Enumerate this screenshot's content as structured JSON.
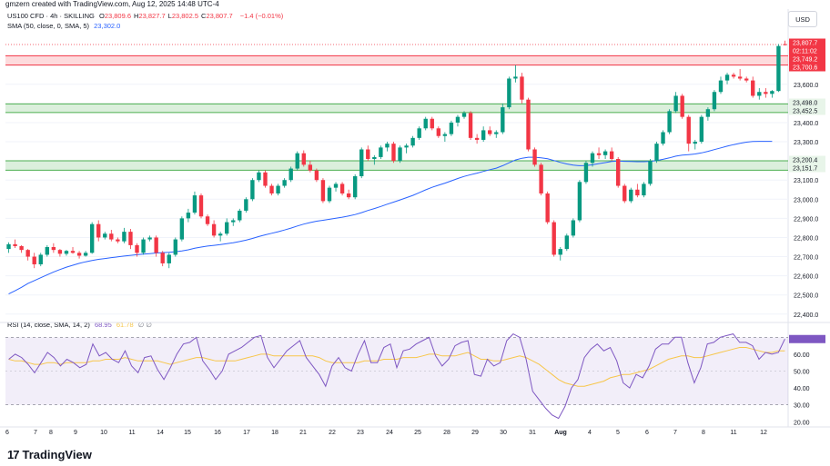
{
  "caption": "gmzern created with TradingView.com, Aug 12, 2025 14:48 UTC-4",
  "legend": {
    "symbol": "US100 CFD · 4h · SKILLING",
    "ohlc": [
      {
        "label": "O",
        "value": "23,809.6"
      },
      {
        "label": "H",
        "value": "23,827.7"
      },
      {
        "label": "L",
        "value": "23,802.5"
      },
      {
        "label": "C",
        "value": "23,807.7"
      }
    ],
    "change": "−1.4 (−0.01%)",
    "sma_label": "SMA (50, close, 0, SMA, 5)",
    "sma_value": "23,302.0",
    "rsi_label": "RSI (14, close, SMA, 14, 2)",
    "rsi_value": "68.95",
    "rsi_ma_value": "61.78",
    "rsi_extra": "∅ ∅"
  },
  "currency": "USD",
  "brand": "TradingView",
  "colors": {
    "up": "#089981",
    "down": "#f23645",
    "sma": "#2962ff",
    "rsi": "#7e57c2",
    "rsi_ma": "#f7c64a",
    "resistance_zone": "#f23645",
    "support_zone": "#4caf50"
  },
  "chart_data": [
    {
      "type": "candlestick",
      "interval": "4h",
      "y_axis_labels": [
        "23,700.0",
        "23,600.0",
        "23,500.0",
        "23,400.0",
        "23,300.0",
        "23,200.0",
        "23,100.0",
        "23,000.0",
        "22,900.0",
        "22,800.0",
        "22,700.0",
        "22,600.0",
        "22,500.0",
        "22,400.0"
      ],
      "ylim": [
        22380,
        23860
      ],
      "x_labels": [
        "6",
        "7",
        "8",
        "9",
        "10",
        "11",
        "14",
        "15",
        "16",
        "17",
        "18",
        "21",
        "22",
        "23",
        "24",
        "25",
        "28",
        "29",
        "30",
        "31",
        "Aug",
        "4",
        "5",
        "6",
        "7",
        "8",
        "11",
        "12"
      ],
      "price_labels": [
        {
          "text": "23,807.7",
          "value": 23807.7,
          "kind": "last"
        },
        {
          "text": "02:11:02",
          "value": 23785,
          "kind": "countdown"
        },
        {
          "text": "23,749.2",
          "value": 23749.2,
          "kind": "zone"
        },
        {
          "text": "23,700.6",
          "value": 23700.6,
          "kind": "zone"
        },
        {
          "text": "23,498.0",
          "value": 23498.0,
          "kind": "support"
        },
        {
          "text": "23,452.5",
          "value": 23452.5,
          "kind": "support"
        },
        {
          "text": "23,200.4",
          "value": 23200.4,
          "kind": "support"
        },
        {
          "text": "23,151.7",
          "value": 23151.7,
          "kind": "support"
        }
      ],
      "zones": [
        {
          "kind": "resistance",
          "from": 23700.6,
          "to": 23749.2
        },
        {
          "kind": "support",
          "from": 23452.5,
          "to": 23498.0
        },
        {
          "kind": "support",
          "from": 23151.7,
          "to": 23200.4
        }
      ],
      "candles": [
        [
          22740,
          22775,
          22720,
          22765
        ],
        [
          22765,
          22790,
          22745,
          22755
        ],
        [
          22755,
          22760,
          22720,
          22735
        ],
        [
          22735,
          22740,
          22680,
          22700
        ],
        [
          22700,
          22720,
          22640,
          22660
        ],
        [
          22660,
          22720,
          22650,
          22710
        ],
        [
          22710,
          22760,
          22700,
          22750
        ],
        [
          22750,
          22770,
          22720,
          22735
        ],
        [
          22735,
          22740,
          22700,
          22715
        ],
        [
          22715,
          22735,
          22705,
          22730
        ],
        [
          22730,
          22750,
          22715,
          22720
        ],
        [
          22720,
          22730,
          22690,
          22705
        ],
        [
          22705,
          22730,
          22700,
          22720
        ],
        [
          22720,
          22880,
          22715,
          22870
        ],
        [
          22870,
          22890,
          22780,
          22800
        ],
        [
          22800,
          22830,
          22790,
          22820
        ],
        [
          22820,
          22840,
          22780,
          22790
        ],
        [
          22790,
          22800,
          22770,
          22780
        ],
        [
          22780,
          22850,
          22770,
          22830
        ],
        [
          22830,
          22845,
          22740,
          22760
        ],
        [
          22760,
          22770,
          22700,
          22720
        ],
        [
          22720,
          22800,
          22710,
          22790
        ],
        [
          22790,
          22810,
          22780,
          22800
        ],
        [
          22800,
          22810,
          22700,
          22720
        ],
        [
          22720,
          22730,
          22650,
          22665
        ],
        [
          22665,
          22720,
          22640,
          22710
        ],
        [
          22710,
          22800,
          22700,
          22790
        ],
        [
          22790,
          22910,
          22780,
          22900
        ],
        [
          22900,
          22950,
          22880,
          22930
        ],
        [
          22930,
          23040,
          22920,
          23020
        ],
        [
          23020,
          23030,
          22900,
          22910
        ],
        [
          22910,
          22920,
          22860,
          22870
        ],
        [
          22870,
          22890,
          22800,
          22810
        ],
        [
          22810,
          22830,
          22780,
          22820
        ],
        [
          22820,
          22900,
          22810,
          22880
        ],
        [
          22880,
          22900,
          22860,
          22890
        ],
        [
          22890,
          22950,
          22880,
          22940
        ],
        [
          22940,
          23010,
          22930,
          23000
        ],
        [
          23000,
          23110,
          22990,
          23100
        ],
        [
          23100,
          23150,
          23090,
          23140
        ],
        [
          23140,
          23150,
          23060,
          23070
        ],
        [
          23070,
          23080,
          23020,
          23030
        ],
        [
          23030,
          23080,
          23020,
          23070
        ],
        [
          23070,
          23110,
          23060,
          23100
        ],
        [
          23100,
          23170,
          23090,
          23160
        ],
        [
          23160,
          23250,
          23150,
          23240
        ],
        [
          23240,
          23255,
          23170,
          23180
        ],
        [
          23180,
          23200,
          23140,
          23150
        ],
        [
          23150,
          23160,
          23090,
          23100
        ],
        [
          23100,
          23110,
          22980,
          22990
        ],
        [
          22990,
          23070,
          22980,
          23060
        ],
        [
          23060,
          23090,
          23040,
          23080
        ],
        [
          23080,
          23090,
          23020,
          23030
        ],
        [
          23030,
          23050,
          23000,
          23010
        ],
        [
          23010,
          23130,
          23000,
          23120
        ],
        [
          23120,
          23270,
          23110,
          23260
        ],
        [
          23260,
          23280,
          23200,
          23210
        ],
        [
          23210,
          23230,
          23180,
          23220
        ],
        [
          23220,
          23280,
          23210,
          23270
        ],
        [
          23270,
          23300,
          23250,
          23290
        ],
        [
          23290,
          23300,
          23190,
          23200
        ],
        [
          23200,
          23280,
          23190,
          23270
        ],
        [
          23270,
          23290,
          23240,
          23280
        ],
        [
          23280,
          23330,
          23270,
          23320
        ],
        [
          23320,
          23380,
          23310,
          23370
        ],
        [
          23370,
          23430,
          23360,
          23420
        ],
        [
          23420,
          23430,
          23360,
          23370
        ],
        [
          23370,
          23380,
          23320,
          23330
        ],
        [
          23330,
          23350,
          23300,
          23340
        ],
        [
          23340,
          23410,
          23330,
          23400
        ],
        [
          23400,
          23440,
          23380,
          23430
        ],
        [
          23430,
          23460,
          23420,
          23450
        ],
        [
          23450,
          23460,
          23310,
          23320
        ],
        [
          23320,
          23340,
          23290,
          23310
        ],
        [
          23310,
          23380,
          23300,
          23360
        ],
        [
          23360,
          23380,
          23330,
          23340
        ],
        [
          23340,
          23360,
          23320,
          23350
        ],
        [
          23350,
          23500,
          23340,
          23480
        ],
        [
          23480,
          23640,
          23470,
          23630
        ],
        [
          23630,
          23700,
          23610,
          23640
        ],
        [
          23640,
          23660,
          23500,
          23520
        ],
        [
          23520,
          23530,
          23250,
          23260
        ],
        [
          23260,
          23270,
          23170,
          23180
        ],
        [
          23180,
          23190,
          23020,
          23030
        ],
        [
          23030,
          23040,
          22870,
          22880
        ],
        [
          22880,
          22890,
          22700,
          22710
        ],
        [
          22710,
          22750,
          22680,
          22740
        ],
        [
          22740,
          22820,
          22730,
          22810
        ],
        [
          22810,
          22900,
          22800,
          22890
        ],
        [
          22890,
          23100,
          22880,
          23090
        ],
        [
          23090,
          23200,
          23080,
          23190
        ],
        [
          23190,
          23250,
          23170,
          23240
        ],
        [
          23240,
          23270,
          23210,
          23230
        ],
        [
          23230,
          23260,
          23210,
          23250
        ],
        [
          23250,
          23270,
          23200,
          23210
        ],
        [
          23210,
          23220,
          23060,
          23070
        ],
        [
          23070,
          23080,
          22980,
          22990
        ],
        [
          22990,
          23060,
          22980,
          23050
        ],
        [
          23050,
          23080,
          23010,
          23020
        ],
        [
          23020,
          23090,
          23010,
          23080
        ],
        [
          23080,
          23210,
          23070,
          23200
        ],
        [
          23200,
          23300,
          23190,
          23290
        ],
        [
          23290,
          23360,
          23280,
          23350
        ],
        [
          23350,
          23470,
          23340,
          23460
        ],
        [
          23460,
          23560,
          23450,
          23540
        ],
        [
          23540,
          23550,
          23420,
          23430
        ],
        [
          23430,
          23440,
          23250,
          23290
        ],
        [
          23290,
          23310,
          23260,
          23300
        ],
        [
          23300,
          23440,
          23290,
          23430
        ],
        [
          23430,
          23480,
          23410,
          23470
        ],
        [
          23470,
          23570,
          23460,
          23560
        ],
        [
          23560,
          23640,
          23550,
          23620
        ],
        [
          23620,
          23660,
          23600,
          23650
        ],
        [
          23650,
          23660,
          23630,
          23640
        ],
        [
          23640,
          23680,
          23620,
          23630
        ],
        [
          23630,
          23640,
          23610,
          23620
        ],
        [
          23620,
          23640,
          23530,
          23540
        ],
        [
          23540,
          23580,
          23520,
          23560
        ],
        [
          23560,
          23580,
          23530,
          23550
        ],
        [
          23550,
          23570,
          23530,
          23565
        ],
        [
          23565,
          23810,
          23560,
          23800
        ],
        [
          23809.6,
          23827.7,
          23802.5,
          23807.7
        ]
      ],
      "sma": [
        [
          22505,
          22522,
          22540,
          22560,
          22575,
          22590,
          22605,
          22620,
          22633,
          22645,
          22655,
          22665,
          22673,
          22680,
          22686,
          22690,
          22695,
          22699,
          22703,
          22707,
          22710,
          22713,
          22716,
          22719,
          22721,
          22723,
          22726,
          22730,
          22736,
          22744,
          22750,
          22755,
          22759,
          22763,
          22768,
          22773,
          22779,
          22786,
          22795,
          22805,
          22814,
          22822,
          22830,
          22839,
          22849,
          22860,
          22870,
          22878,
          22885,
          22890,
          22895,
          22901,
          22906,
          22912,
          22920,
          22930,
          22941,
          22951,
          22962,
          22974,
          22985,
          22996,
          23008,
          23020,
          23034,
          23049,
          23062,
          23073,
          23084,
          23096,
          23108,
          23119,
          23128,
          23136,
          23145,
          23154,
          23162,
          23175,
          23190,
          23205,
          23214,
          23219,
          23219,
          23216,
          23211,
          23202,
          23192,
          23184,
          23178,
          23175,
          23176,
          23180,
          23186,
          23191,
          23197,
          23199,
          23198,
          23197,
          23196,
          23196,
          23198,
          23202,
          23208,
          23216,
          23225,
          23230,
          23233,
          23236,
          23242,
          23250,
          23259,
          23268,
          23277,
          23285,
          23292,
          23298,
          23301,
          23302,
          23302,
          23302
        ]
      ]
    },
    {
      "type": "line",
      "name": "RSI",
      "y_axis_labels": [
        "70.00",
        "60.00",
        "50.00",
        "40.00",
        "30.00",
        "20.00"
      ],
      "ylim": [
        18,
        75
      ],
      "levels": [
        30,
        70
      ],
      "rsi": [
        57,
        60,
        58,
        54,
        49,
        55,
        61,
        58,
        53,
        57,
        55,
        52,
        54,
        66,
        59,
        61,
        57,
        55,
        62,
        53,
        49,
        58,
        59,
        51,
        45,
        52,
        60,
        66,
        67,
        70,
        56,
        51,
        45,
        50,
        60,
        62,
        64,
        67,
        70,
        71,
        58,
        52,
        57,
        62,
        65,
        68,
        58,
        53,
        48,
        41,
        53,
        58,
        52,
        50,
        60,
        68,
        55,
        55,
        64,
        66,
        52,
        62,
        63,
        66,
        68,
        70,
        59,
        53,
        57,
        65,
        67,
        68,
        48,
        47,
        57,
        53,
        55,
        68,
        72,
        70,
        57,
        38,
        33,
        28,
        24,
        22,
        29,
        40,
        45,
        58,
        63,
        66,
        62,
        64,
        56,
        43,
        40,
        48,
        46,
        53,
        63,
        66,
        66,
        70,
        70,
        55,
        43,
        52,
        66,
        67,
        70,
        71,
        72,
        67,
        67,
        65,
        57,
        61,
        60,
        61,
        69
      ],
      "rsi_ma": [
        57,
        56,
        56,
        55,
        54,
        54,
        55,
        55,
        54,
        55,
        55,
        55,
        55,
        56,
        56,
        57,
        57,
        57,
        58,
        57,
        56,
        56,
        56,
        56,
        55,
        54,
        55,
        56,
        57,
        58,
        58,
        57,
        56,
        56,
        56,
        56,
        57,
        58,
        59,
        60,
        60,
        59,
        59,
        59,
        59,
        59,
        59,
        59,
        58,
        56,
        55,
        55,
        55,
        55,
        55,
        56,
        56,
        56,
        57,
        57,
        57,
        58,
        58,
        58,
        59,
        60,
        60,
        59,
        59,
        59,
        60,
        61,
        59,
        57,
        57,
        56,
        56,
        57,
        58,
        59,
        58,
        56,
        54,
        51,
        48,
        45,
        43,
        42,
        41,
        41,
        42,
        43,
        44,
        46,
        47,
        48,
        48,
        49,
        50,
        51,
        53,
        55,
        57,
        58,
        59,
        59,
        58,
        58,
        59,
        60,
        61,
        62,
        63,
        64,
        64,
        63,
        62,
        61,
        61,
        62,
        62
      ]
    }
  ]
}
